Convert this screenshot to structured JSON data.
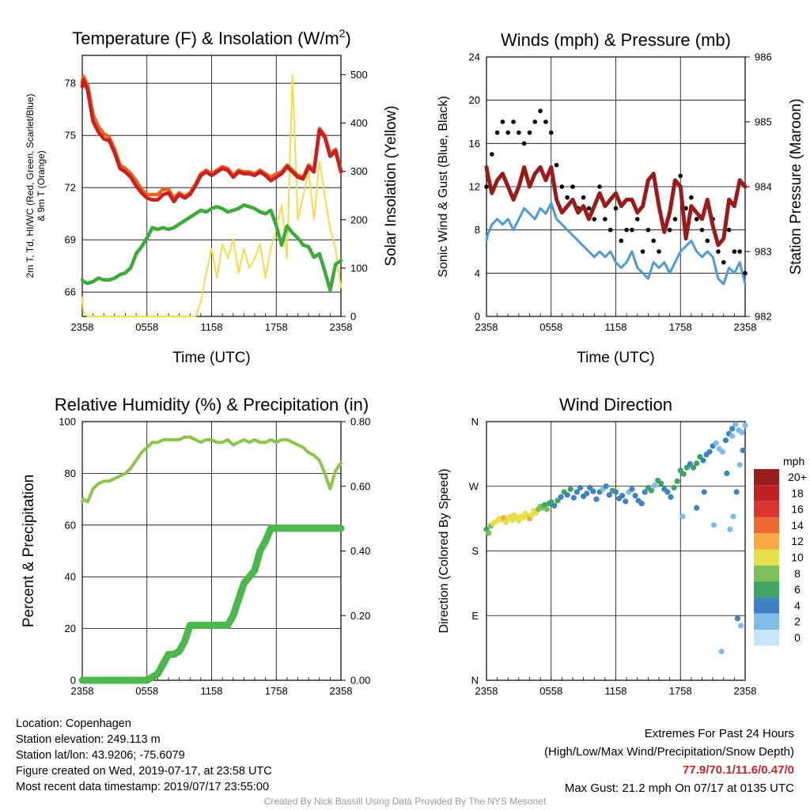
{
  "footer": {
    "location": "Location: Copenhagen",
    "elevation": "Station elevation: 249.113 m",
    "latlon": "Station lat/lon: 43.9206; -75.6079",
    "created": "Figure created on Wed, 2019-07-17, at 23:58 UTC",
    "recent": "Most recent data timestamp: 2019/07/17 23:55:00",
    "extremes_title": "Extremes For Past 24 Hours",
    "extremes_subtitle": "(High/Low/Max Wind/Precipitation/Snow Depth)",
    "extremes_values": "77.9/70.1/11.6/0.47/0",
    "max_gust": "Max Gust: 21.2 mph On 07/17 at 0135 UTC",
    "credit": "Created By Nick Bassill Using Data Provided By The NYS Mesonet"
  },
  "colors": {
    "temp": "#c8201e",
    "heat_index": "#e8641e",
    "dewpoint": "#3cab3c",
    "insolation": "#f4dd4a",
    "wind": "#4d9bd2",
    "gust": "#000000",
    "pressure": "#9b1a1a",
    "humidity": "#8cc44c",
    "precip": "#4cb84c",
    "speed_scale": [
      "#c6e6f7",
      "#7fbde6",
      "#3f82c1",
      "#3ea463",
      "#7cc05a",
      "#e6df4a",
      "#f6aa41",
      "#ee6930",
      "#d93530",
      "#c01f24",
      "#9b1c1c"
    ]
  },
  "chart_data": [
    {
      "type": "line",
      "title": "Temperature (F) & Insolation (W/m²)",
      "title_main": "Temperature (F) & Insolation (W/m",
      "title_sup": "2",
      "title_end": ")",
      "xlabel": "Time (UTC)",
      "ylabel": "2m T, Td, HI/WC (Red, Green, Scarlet/Blue)",
      "ylabel_line2": "& 9m T (Orange)",
      "y2label": "Solar Insolation (Yellow)",
      "x_ticks": [
        "2358",
        "0558",
        "1158",
        "1758",
        "2358"
      ],
      "ylim": [
        64.6,
        79.6
      ],
      "y_ticks": [
        66,
        69,
        72,
        75,
        78
      ],
      "y2lim": [
        0,
        540
      ],
      "y2_ticks": [
        0,
        100,
        200,
        300,
        400,
        500
      ],
      "x_hours": [
        0,
        0.1,
        0.5,
        1,
        1.5,
        2,
        2.5,
        3,
        3.5,
        4,
        4.5,
        5,
        5.5,
        6,
        6.5,
        7,
        7.5,
        8,
        8.5,
        9,
        9.5,
        10,
        10.5,
        11,
        11.5,
        12,
        12.5,
        13,
        13.5,
        14,
        14.5,
        15,
        15.5,
        16,
        16.5,
        17,
        17.5,
        18,
        18.5,
        19,
        19.5,
        20,
        20.5,
        21,
        21.5,
        22,
        22.5,
        23,
        23.5,
        24
      ],
      "series": [
        {
          "name": "2m T",
          "values": [
            77.8,
            78.2,
            77.6,
            75.8,
            75.2,
            74.8,
            74.7,
            74.0,
            73.1,
            72.9,
            72.6,
            72.1,
            71.7,
            71.4,
            71.3,
            71.3,
            71.6,
            71.7,
            71.2,
            71.6,
            71.4,
            71.6,
            72.1,
            72.7,
            72.9,
            72.7,
            72.9,
            73.1,
            73.0,
            72.6,
            72.9,
            72.8,
            72.8,
            72.7,
            72.9,
            72.7,
            72.4,
            72.6,
            72.8,
            73.2,
            72.9,
            72.6,
            72.5,
            73.2,
            72.9,
            75.3,
            74.9,
            73.8,
            74.1,
            72.9
          ]
        },
        {
          "name": "9m T",
          "values": [
            78.0,
            78.4,
            77.9,
            76.2,
            75.5,
            75.1,
            74.9,
            74.2,
            73.3,
            73.1,
            72.8,
            72.4,
            71.9,
            71.6,
            71.6,
            71.6,
            71.9,
            71.9,
            71.4,
            71.7,
            71.5,
            71.7,
            72.2,
            72.8,
            73.0,
            72.8,
            73.0,
            73.2,
            73.1,
            72.7,
            73.0,
            72.9,
            72.9,
            72.8,
            73.0,
            72.8,
            72.6,
            72.8,
            72.9,
            73.3,
            73.0,
            72.7,
            72.6,
            73.3,
            73.0,
            75.4,
            75.0,
            73.9,
            74.2,
            73.0
          ]
        },
        {
          "name": "2m Td",
          "values": [
            66.7,
            66.6,
            66.5,
            66.6,
            66.8,
            66.7,
            66.7,
            66.8,
            67.0,
            67.1,
            67.4,
            68.2,
            68.6,
            69.1,
            69.7,
            69.6,
            69.7,
            69.6,
            69.7,
            69.9,
            70.1,
            70.3,
            70.5,
            70.7,
            70.6,
            70.8,
            70.9,
            70.8,
            70.6,
            70.7,
            70.8,
            71.0,
            70.9,
            70.8,
            70.6,
            70.5,
            70.7,
            69.8,
            68.7,
            69.8,
            69.4,
            69.1,
            68.7,
            68.6,
            68.0,
            68.2,
            67.2,
            66.1,
            67.6,
            67.8
          ]
        },
        {
          "name": "Solar Insolation",
          "axis": "y2",
          "values": [
            40,
            10,
            0,
            0,
            0,
            0,
            0,
            0,
            0,
            0,
            0,
            0,
            0,
            0,
            0,
            0,
            0,
            0,
            0,
            0,
            0,
            0,
            0,
            30,
            90,
            140,
            80,
            150,
            120,
            160,
            90,
            140,
            100,
            120,
            150,
            80,
            140,
            180,
            230,
            120,
            500,
            200,
            250,
            300,
            200,
            320,
            250,
            180,
            140,
            60
          ]
        }
      ]
    },
    {
      "type": "line",
      "title": "Winds (mph) & Pressure (mb)",
      "xlabel": "Time (UTC)",
      "ylabel": "Sonic Wind & Gust (Blue, Black)",
      "y2label": "Station Pressure (Maroon)",
      "x_ticks": [
        "2358",
        "0558",
        "1158",
        "1758",
        "2358"
      ],
      "ylim": [
        0,
        24
      ],
      "y_ticks": [
        0,
        4,
        8,
        12,
        16,
        20,
        24
      ],
      "y2lim": [
        982,
        986
      ],
      "y2_ticks": [
        982,
        983,
        984,
        985,
        986
      ],
      "x_hours": [
        0,
        0.1,
        0.5,
        1,
        1.5,
        2,
        2.5,
        3,
        3.5,
        4,
        4.5,
        5,
        5.5,
        6,
        6.5,
        7,
        7.5,
        8,
        8.5,
        9,
        9.5,
        10,
        10.5,
        11,
        11.5,
        12,
        12.5,
        13,
        13.5,
        14,
        14.5,
        15,
        15.5,
        16,
        16.5,
        17,
        17.5,
        18,
        18.5,
        19,
        19.5,
        20,
        20.5,
        21,
        21.5,
        22,
        22.5,
        23,
        23.5,
        24
      ],
      "series": [
        {
          "name": "Sonic Wind",
          "values": [
            7,
            7.5,
            8.5,
            9,
            8.5,
            9,
            8,
            9,
            10,
            9.5,
            9,
            10,
            9.5,
            10.5,
            9,
            8.5,
            8,
            7.5,
            7,
            6.5,
            6,
            5.5,
            6,
            5.5,
            6,
            5,
            4.5,
            5,
            6,
            4.5,
            4,
            3.5,
            5,
            4.5,
            5,
            4,
            5,
            6,
            6.5,
            7,
            6,
            5.5,
            6,
            5.5,
            3.5,
            3,
            4.5,
            4,
            5,
            3
          ]
        },
        {
          "name": "Gust",
          "values": [
            12,
            13,
            15,
            17,
            18,
            17,
            18,
            17,
            16,
            17,
            18,
            19,
            18,
            17,
            14,
            12,
            11,
            12,
            10,
            11,
            10,
            9,
            12,
            9,
            8,
            10,
            7,
            8,
            8,
            9,
            6,
            8,
            7,
            6,
            8,
            8,
            9,
            13,
            10,
            11,
            9,
            8,
            7,
            9,
            6,
            5,
            8,
            6,
            6,
            4
          ]
        },
        {
          "name": "Station Pressure",
          "axis": "y2",
          "values": [
            984.3,
            984.2,
            983.9,
            984.1,
            984.2,
            984.0,
            983.8,
            984.0,
            984.3,
            984.0,
            984.2,
            984.3,
            984.1,
            984.3,
            983.8,
            983.6,
            983.7,
            983.8,
            983.6,
            983.7,
            983.5,
            983.7,
            983.9,
            983.7,
            983.8,
            983.9,
            983.7,
            983.8,
            983.8,
            983.6,
            983.7,
            984.1,
            984.2,
            983.7,
            983.3,
            983.6,
            984.1,
            984.0,
            983.2,
            983.7,
            983.6,
            983.5,
            983.8,
            983.4,
            983.1,
            983.2,
            983.8,
            983.7,
            984.1,
            984.0
          ]
        }
      ]
    },
    {
      "type": "line",
      "title": "Relative Humidity (%) & Precipitation (in)",
      "xlabel": "",
      "ylabel": "Percent & Precipitation",
      "x_ticks": [
        "2358",
        "0558",
        "1158",
        "1758",
        "2358"
      ],
      "ylim": [
        0,
        100
      ],
      "y_ticks": [
        0,
        20,
        40,
        60,
        80,
        100
      ],
      "y2lim": [
        0,
        0.8
      ],
      "y2_ticks": [
        "0.00",
        "0.20",
        "0.40",
        "0.60",
        "0.80"
      ],
      "x_hours": [
        0,
        0.1,
        0.5,
        1,
        1.5,
        2,
        2.5,
        3,
        3.5,
        4,
        4.5,
        5,
        5.5,
        6,
        6.5,
        7,
        7.5,
        8,
        8.5,
        9,
        9.5,
        10,
        10.5,
        11,
        11.5,
        12,
        12.5,
        13,
        13.5,
        14,
        14.5,
        15,
        15.5,
        16,
        16.5,
        17,
        17.5,
        18,
        18.5,
        19,
        19.5,
        20,
        20.5,
        21,
        21.5,
        22,
        22.5,
        23,
        23.5,
        24
      ],
      "series": [
        {
          "name": "Relative Humidity",
          "values": [
            69,
            70,
            69,
            74,
            76,
            77,
            77,
            78,
            79,
            80,
            82,
            85,
            88,
            90,
            92,
            92,
            93,
            93,
            93,
            93,
            94,
            94,
            93,
            92,
            93,
            93,
            92,
            92,
            93,
            91,
            92,
            93,
            92,
            93,
            92,
            92,
            93,
            92,
            93,
            93,
            92,
            91,
            90,
            88,
            87,
            85,
            80,
            74,
            81,
            84
          ]
        },
        {
          "name": "Precipitation",
          "axis": "y2",
          "values": [
            0,
            0,
            0,
            0,
            0,
            0,
            0,
            0,
            0,
            0,
            0,
            0,
            0,
            0,
            0.01,
            0.02,
            0.05,
            0.08,
            0.08,
            0.09,
            0.12,
            0.17,
            0.17,
            0.17,
            0.17,
            0.17,
            0.17,
            0.17,
            0.17,
            0.2,
            0.25,
            0.3,
            0.32,
            0.34,
            0.4,
            0.43,
            0.47,
            0.47,
            0.47,
            0.47,
            0.47,
            0.47,
            0.47,
            0.47,
            0.47,
            0.47,
            0.47,
            0.47,
            0.47,
            0.47
          ]
        }
      ]
    },
    {
      "type": "scatter",
      "title": "Wind Direction",
      "xlabel": "",
      "ylabel": "Direction (Colored By Speed)",
      "x_ticks": [
        "2358",
        "0558",
        "1158",
        "1758",
        "2358"
      ],
      "y_ticks": [
        "N",
        "E",
        "S",
        "W",
        "N"
      ],
      "ylim": [
        0,
        360
      ],
      "legend_title": "mph",
      "legend_labels": [
        "20+",
        "18",
        "16",
        "14",
        "12",
        "10",
        "8",
        "6",
        "4",
        "2",
        "0"
      ],
      "series": [
        {
          "name": "Direction",
          "x": [
            0,
            0.2,
            0.4,
            0.6,
            0.8,
            1,
            1.2,
            1.4,
            1.6,
            1.8,
            2,
            2.2,
            2.4,
            2.6,
            2.8,
            3,
            3.2,
            3.4,
            3.6,
            3.8,
            4,
            4.2,
            4.4,
            4.6,
            4.8,
            5,
            5.2,
            5.4,
            5.6,
            5.8,
            6,
            6.3,
            6.6,
            6.9,
            7.2,
            7.5,
            7.8,
            8.1,
            8.4,
            8.7,
            9,
            9.3,
            9.6,
            9.9,
            10.2,
            10.5,
            10.8,
            11.1,
            11.4,
            11.7,
            12,
            12.3,
            12.6,
            12.9,
            13.2,
            13.5,
            13.8,
            14.1,
            14.4,
            14.7,
            15,
            15.3,
            15.6,
            15.9,
            16.2,
            16.5,
            16.8,
            17.1,
            17.4,
            17.7,
            18,
            18.3,
            18.6,
            18.9,
            19.2,
            19.5,
            19.8,
            20.1,
            20.4,
            20.7,
            21,
            21.3,
            21.6,
            21.9,
            22.2,
            22.5,
            22.8,
            23.1,
            23.4,
            23.7,
            24,
            22.6,
            22.9,
            23.2,
            23.5,
            23.8,
            22.8,
            23.3,
            23.6,
            21.8,
            22.3,
            18.2,
            19.5,
            20.2,
            21.1
          ],
          "y": [
            210,
            205,
            215,
            218,
            220,
            222,
            225,
            224,
            226,
            220,
            225,
            228,
            223,
            230,
            226,
            222,
            228,
            226,
            232,
            229,
            225,
            230,
            236,
            233,
            238,
            242,
            240,
            244,
            238,
            246,
            248,
            243,
            250,
            255,
            262,
            258,
            266,
            254,
            262,
            268,
            256,
            260,
            268,
            263,
            252,
            262,
            266,
            270,
            258,
            264,
            262,
            253,
            257,
            249,
            262,
            266,
            257,
            250,
            246,
            262,
            268,
            264,
            271,
            278,
            274,
            266,
            262,
            255,
            268,
            277,
            292,
            287,
            296,
            301,
            296,
            302,
            311,
            306,
            314,
            318,
            326,
            330,
            322,
            318,
            334,
            343,
            350,
            356,
            348,
            345,
            355,
            210,
            228,
            262,
            300,
            320,
            340,
            86,
            76,
            40,
            288,
            228,
            240,
            262,
            216
          ],
          "speed": [
            6,
            7,
            8,
            10,
            10,
            10,
            10,
            10,
            11,
            10,
            10,
            10,
            10,
            10,
            10,
            10,
            10,
            10,
            10,
            10,
            12,
            9,
            10,
            9,
            8,
            8,
            7,
            6,
            7,
            6,
            5,
            4,
            5,
            4,
            6,
            4,
            6,
            3,
            4,
            3,
            4,
            3,
            3,
            4,
            3,
            4,
            2,
            3,
            4,
            6,
            3,
            3,
            4,
            3,
            2,
            4,
            3,
            4,
            3,
            3,
            6,
            6,
            2,
            6,
            6,
            4,
            3,
            4,
            6,
            5,
            6,
            6,
            5,
            4,
            5,
            6,
            6,
            4,
            3,
            3,
            4,
            2,
            2,
            1,
            3,
            3,
            3,
            2,
            2,
            2,
            2,
            1,
            1,
            3,
            2,
            3,
            2,
            3,
            2,
            1,
            3,
            2,
            3,
            4,
            2
          ]
        }
      ]
    }
  ]
}
